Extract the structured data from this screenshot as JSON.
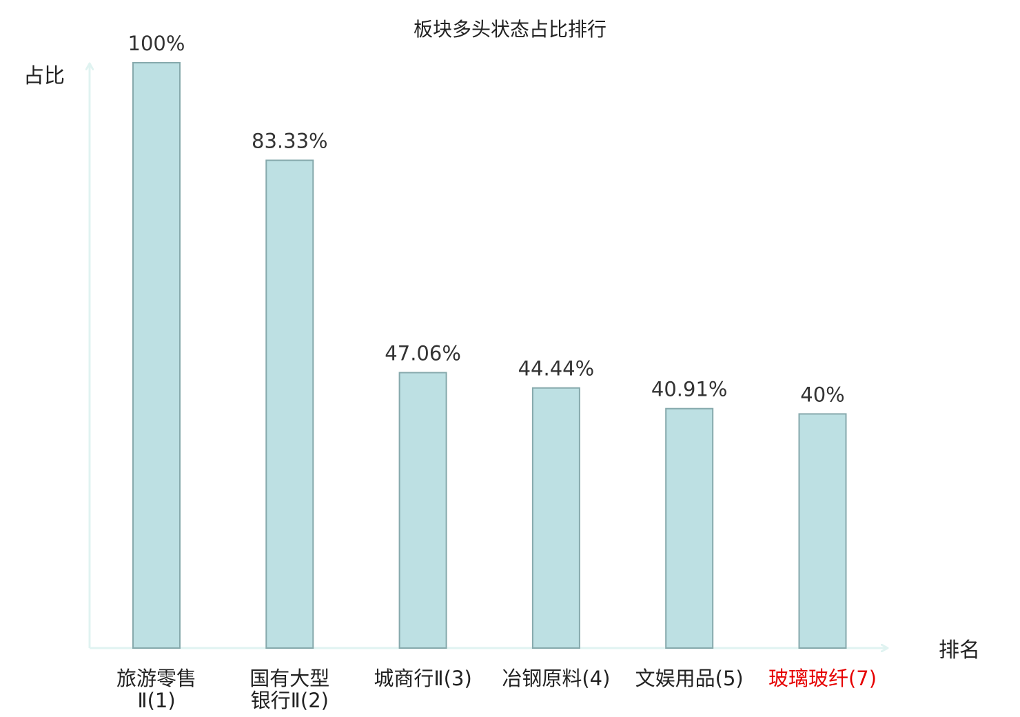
{
  "chart_data": {
    "type": "bar",
    "title": "板块多头状态占比排行",
    "ylabel": "占比",
    "xlabel": "排名",
    "ylim": [
      0,
      100
    ],
    "grid": false,
    "categories": [
      {
        "lines": [
          "旅游零售",
          "Ⅱ(1)"
        ],
        "highlight": false
      },
      {
        "lines": [
          "国有大型",
          "银行Ⅱ(2)"
        ],
        "highlight": false
      },
      {
        "lines": [
          "城商行Ⅱ(3)"
        ],
        "highlight": false
      },
      {
        "lines": [
          "冶钢原料(4)"
        ],
        "highlight": false
      },
      {
        "lines": [
          "文娱用品(5)"
        ],
        "highlight": false
      },
      {
        "lines": [
          "玻璃玻纤(7)"
        ],
        "highlight": true
      }
    ],
    "values": [
      100,
      83.33,
      47.06,
      44.44,
      40.91,
      40
    ],
    "value_labels": [
      "100%",
      "83.33%",
      "47.06%",
      "44.44%",
      "40.91%",
      "40%"
    ],
    "colors": {
      "bar_fill": "#bde0e3",
      "bar_stroke": "#86a9ac",
      "axis": "#e0f3f1",
      "highlight_text": "#e60000"
    }
  }
}
